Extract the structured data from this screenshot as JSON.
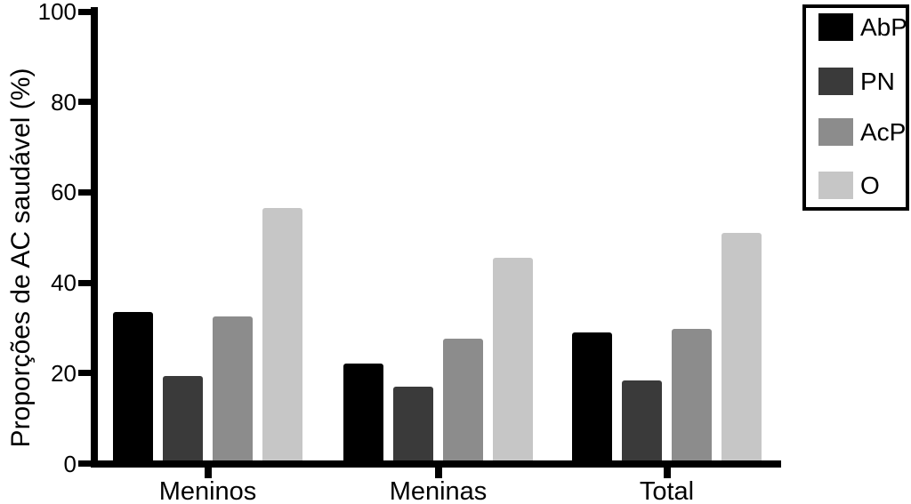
{
  "chart_data": {
    "type": "bar",
    "title": "",
    "xlabel": "",
    "ylabel": "Proporções de AC saudável (%)",
    "ylim": [
      0,
      100
    ],
    "yticks": [
      "0",
      "20",
      "40",
      "60",
      "80",
      "100"
    ],
    "ytick_values": [
      0,
      20,
      40,
      60,
      80,
      100
    ],
    "categories": [
      "Meninos",
      "Meninas",
      "Total"
    ],
    "series": [
      {
        "name": "AbP",
        "color": "#000000",
        "values": [
          33.0,
          21.5,
          28.5
        ]
      },
      {
        "name": "PN",
        "color": "#3a3a3a",
        "values": [
          18.7,
          16.5,
          17.7
        ]
      },
      {
        "name": "AcP",
        "color": "#8c8c8c",
        "values": [
          32.0,
          27.0,
          29.3
        ]
      },
      {
        "name": "O",
        "color": "#c6c6c6",
        "values": [
          56.2,
          45.0,
          50.5
        ]
      }
    ],
    "legend_position": "top-right",
    "legend_entries": [
      "AbP",
      "PN",
      "AcP",
      "O"
    ],
    "grid": false,
    "axis_color": "#000000",
    "background_color": "#ffffff"
  }
}
